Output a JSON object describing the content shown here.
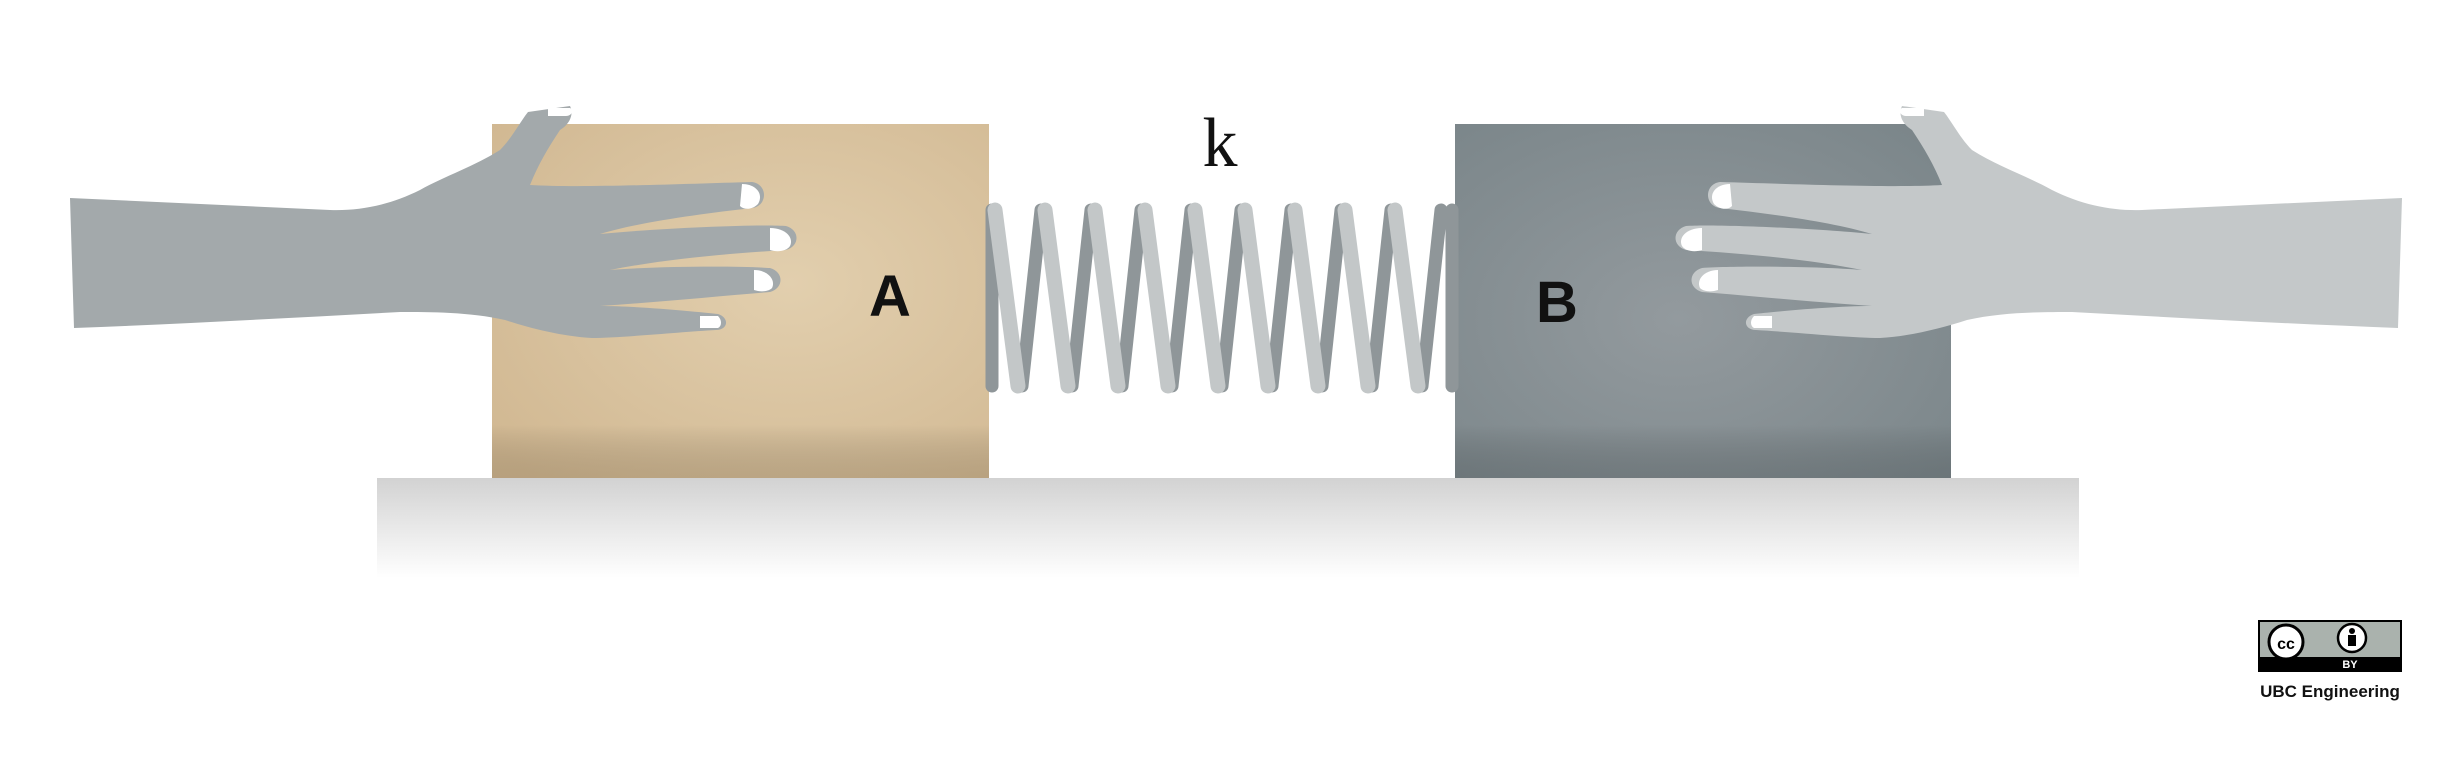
{
  "diagram": {
    "block_a_label": "A",
    "block_b_label": "B",
    "spring_label": "k",
    "credit": "UBC Engineering",
    "license": {
      "cc": "cc",
      "by": "BY"
    }
  },
  "colors": {
    "block_a": "#d8c29f",
    "block_b": "#838d92",
    "left_hand": "#a3a9ab",
    "right_hand": "#c4c8c9",
    "spring_front": "#c3c7c8",
    "spring_back": "#8f9699",
    "floor": "#d9d9d9"
  },
  "icons": [
    "left-hand-icon",
    "right-hand-icon",
    "cc-icon",
    "person-icon"
  ]
}
